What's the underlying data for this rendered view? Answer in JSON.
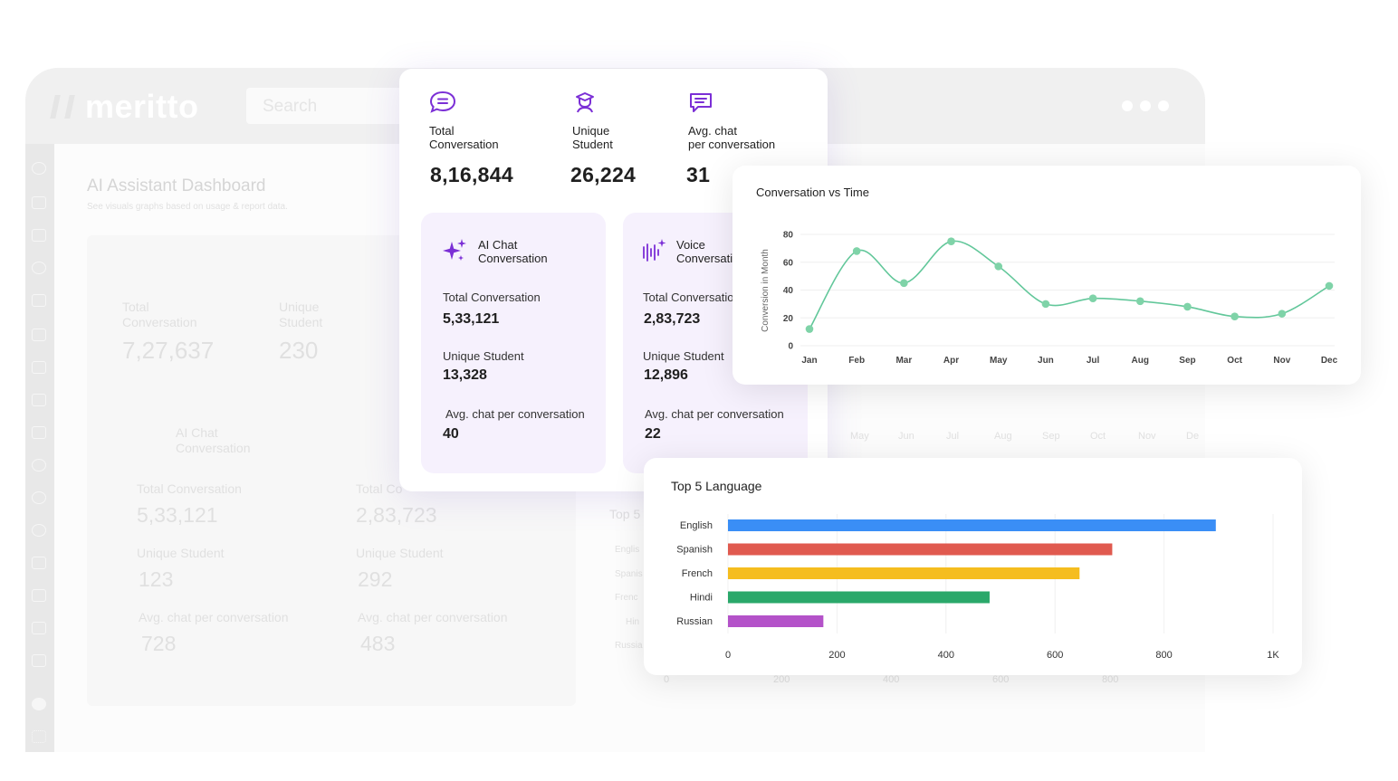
{
  "background_dashboard": {
    "logo": "meritto",
    "search_placeholder": "Search",
    "page_title": "AI Assistant Dashboard",
    "page_subtitle": "See visuals graphs based on usage & report data.",
    "total_conversation_label": "Total\nConversation",
    "total_conversation_value": "7,27,637",
    "unique_student_label": "Unique\nStudent",
    "unique_student_value": "230",
    "ai_chat_label": "AI Chat\nConversation",
    "ai_total_label": "Total Conversation",
    "ai_total_value": "5,33,121",
    "ai_unique_label": "Unique Student",
    "ai_unique_value": "123",
    "ai_avg_label": "Avg. chat per conversation",
    "ai_avg_value": "728",
    "voice_total_label": "Total Co",
    "voice_total_value": "2,83,723",
    "voice_unique_label": "Unique Student",
    "voice_unique_value": "292",
    "voice_avg_label": "Avg. chat per conversation",
    "voice_avg_value": "483",
    "top_partial": "Top 5",
    "months_partial": [
      "May",
      "Jun",
      "Jul",
      "Aug",
      "Sep",
      "Oct",
      "Nov",
      "De"
    ],
    "axis_partial": [
      "0",
      "200",
      "400",
      "600",
      "800",
      "1"
    ],
    "lang_partial": [
      "Englis",
      "Spanis",
      "Frenc",
      "Hin",
      "Russia"
    ]
  },
  "stats": {
    "total_conversation": {
      "label": "Total\nConversation",
      "value": "8,16,844",
      "icon": "chat-bubble-icon"
    },
    "unique_student": {
      "label": "Unique\nStudent",
      "value": "26,224",
      "icon": "graduate-icon"
    },
    "avg_chat": {
      "label": "Avg. chat\nper conversation",
      "value": "31",
      "icon": "message-icon"
    },
    "ai_chat": {
      "title": "AI Chat\nConversation",
      "icon": "sparkles-icon",
      "total_label": "Total Conversation",
      "total_value": "5,33,121",
      "unique_label": "Unique Student",
      "unique_value": "13,328",
      "avg_label": "Avg. chat per conversation",
      "avg_value": "40"
    },
    "voice": {
      "title": "Voice\nConversati",
      "icon": "voice-wave-icon",
      "total_label": "Total Conversatio",
      "total_value": "2,83,723",
      "unique_label": "Unique Student",
      "unique_value": "12,896",
      "avg_label": "Avg. chat per conversation",
      "avg_value": "22"
    }
  },
  "colors": {
    "accent": "#7b2fd6",
    "line": "#62c79a",
    "subcard_bg": "#f6f1fd"
  },
  "chart_data": [
    {
      "type": "line",
      "title": "Conversation vs Time",
      "xlabel": "",
      "ylabel": "Conversion in Month",
      "categories": [
        "Jan",
        "Feb",
        "Mar",
        "Apr",
        "May",
        "Jun",
        "Jul",
        "Aug",
        "Sep",
        "Oct",
        "Nov",
        "Dec"
      ],
      "values": [
        12,
        68,
        45,
        75,
        57,
        30,
        34,
        32,
        28,
        21,
        23,
        43
      ],
      "ylim": [
        0,
        80
      ],
      "yticks": [
        "0",
        "20",
        "40",
        "60",
        "80"
      ],
      "grid": true
    },
    {
      "type": "bar",
      "orientation": "horizontal",
      "title": "Top 5 Language",
      "categories": [
        "English",
        "Spanish",
        "French",
        "Hindi",
        "Russian"
      ],
      "values": [
        895,
        705,
        645,
        480,
        175
      ],
      "colors": [
        "#3a8ef6",
        "#e05a4f",
        "#f5bd1f",
        "#2aa86a",
        "#b452c9"
      ],
      "xlim": [
        0,
        1000
      ],
      "xticks": [
        "0",
        "200",
        "400",
        "600",
        "800",
        "1K"
      ],
      "grid": true
    }
  ]
}
